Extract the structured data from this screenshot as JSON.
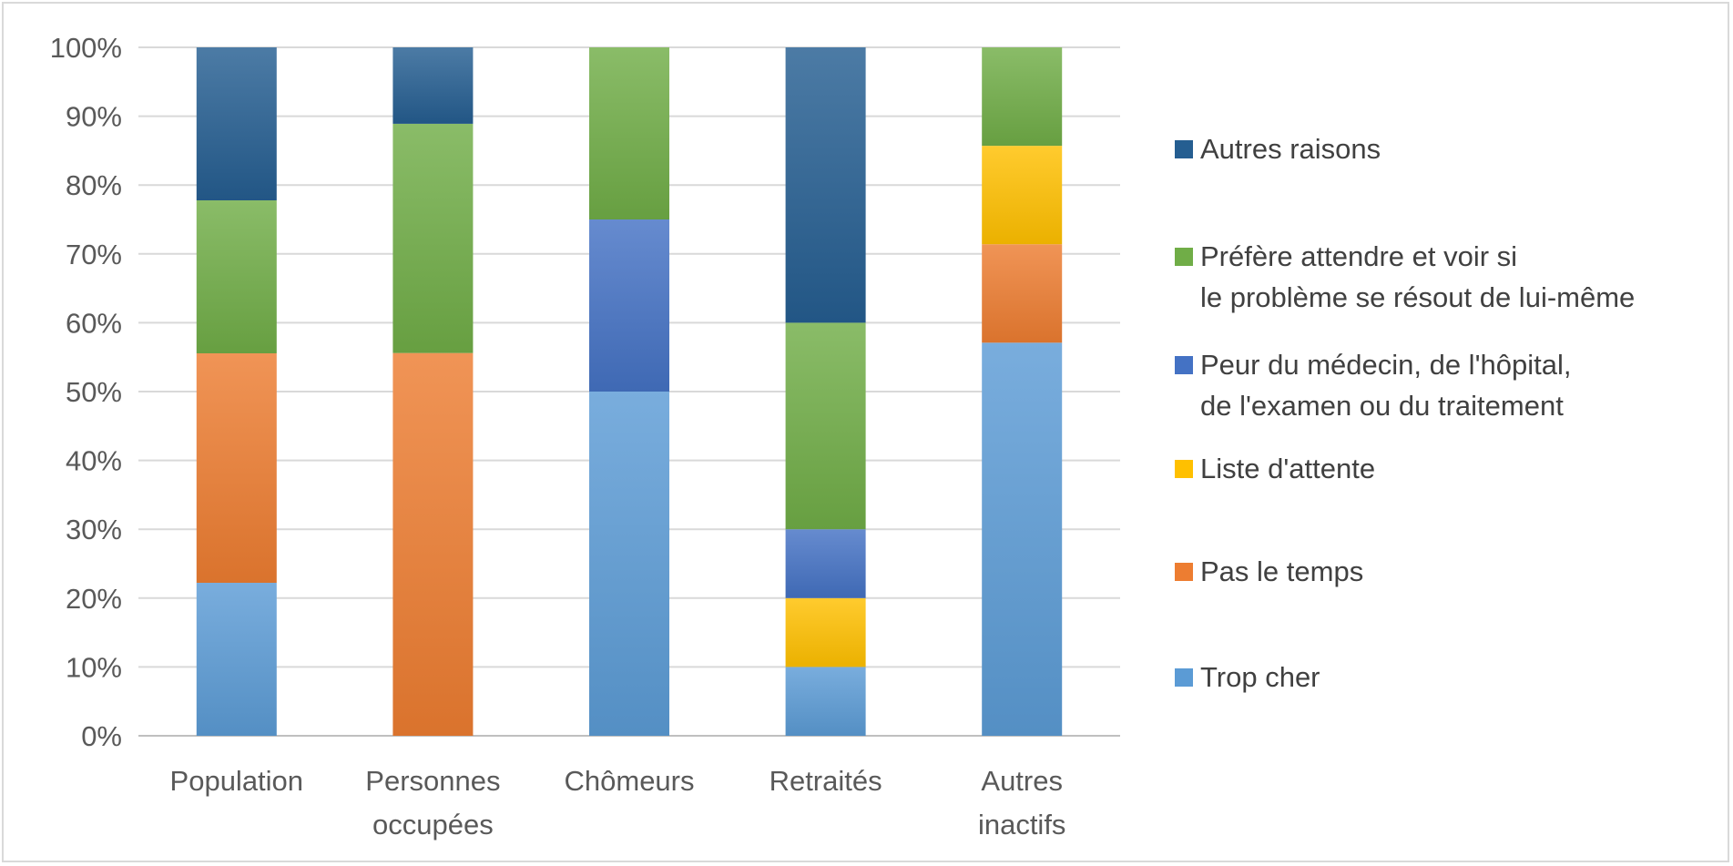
{
  "chart_data": {
    "type": "bar",
    "stacked": true,
    "percent_stacked": true,
    "title": "",
    "xlabel": "",
    "ylabel": "",
    "categories": [
      "Population",
      "Personnes occupées",
      "Chômeurs",
      "Retraités",
      "Autres inactifs"
    ],
    "category_label_lines": [
      [
        "Population"
      ],
      [
        "Personnes",
        "occupées"
      ],
      [
        "Chômeurs"
      ],
      [
        "Retraités"
      ],
      [
        "Autres",
        "inactifs"
      ]
    ],
    "ylim": [
      0,
      100
    ],
    "yticks": [
      "0%",
      "10%",
      "20%",
      "30%",
      "40%",
      "50%",
      "60%",
      "70%",
      "80%",
      "90%",
      "100%"
    ],
    "grid": true,
    "legend_position": "right",
    "series": [
      {
        "name": "Trop cher",
        "color": "#5b9bd5",
        "values": [
          22.2,
          0,
          50,
          10,
          57.1
        ]
      },
      {
        "name": "Pas le temps",
        "color": "#ed7d31",
        "values": [
          33.3,
          55.6,
          0,
          0,
          14.3
        ]
      },
      {
        "name": "Liste d'attente",
        "color": "#ffc000",
        "values": [
          0,
          0,
          0,
          10,
          14.3
        ]
      },
      {
        "name": "Peur du médecin, de l'hôpital, de l'examen ou du traitement",
        "color": "#4472c4",
        "values": [
          0,
          0,
          25,
          10,
          0
        ]
      },
      {
        "name": "Préfère attendre et voir si le problème se résout de lui-même",
        "color": "#70ad47",
        "values": [
          22.2,
          33.3,
          25,
          30,
          14.3
        ]
      },
      {
        "name": "Autres raisons",
        "color": "#255e91",
        "values": [
          22.2,
          11.1,
          0,
          40,
          0
        ]
      }
    ]
  },
  "legend": [
    {
      "label": "Autres raisons",
      "color": "#255e91"
    },
    {
      "label": "Préfère attendre et voir si\nle problème se résout de lui-même",
      "color": "#70ad47"
    },
    {
      "label": "Peur du médecin, de l'hôpital,\nde l'examen ou du traitement",
      "color": "#4472c4"
    },
    {
      "label": "Liste d'attente",
      "color": "#ffc000"
    },
    {
      "label": "Pas le temps",
      "color": "#ed7d31"
    },
    {
      "label": "Trop cher",
      "color": "#5b9bd5"
    }
  ]
}
